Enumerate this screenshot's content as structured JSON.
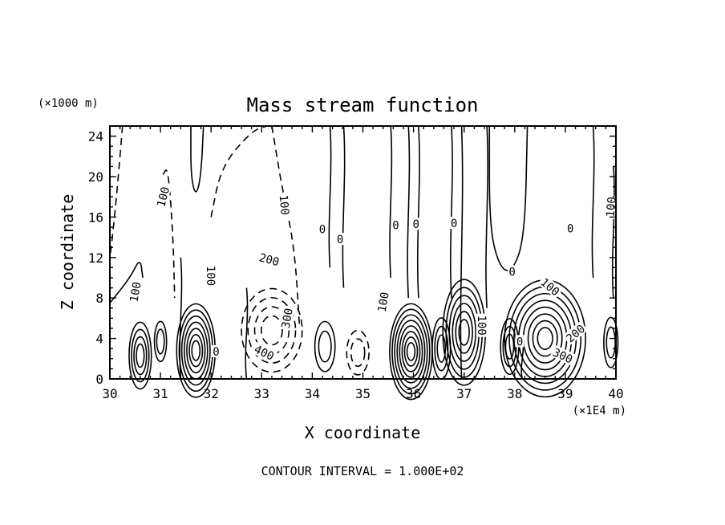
{
  "chart_data": {
    "type": "contour",
    "title": "Mass stream function",
    "xlabel": "X coordinate",
    "ylabel": "Z coordinate",
    "x_unit": "(×1E4 m)",
    "y_unit": "(×1000 m)",
    "xlim": [
      30,
      40
    ],
    "ylim": [
      0,
      25
    ],
    "xticks": [
      30,
      31,
      32,
      33,
      34,
      35,
      36,
      37,
      38,
      39,
      40
    ],
    "yticks": [
      0,
      4,
      8,
      12,
      16,
      20,
      24
    ],
    "footnote": "CONTOUR INTERVAL = 1.000E+02",
    "negative_contours_dashed": true,
    "contour_labels": [
      {
        "text": "100",
        "x": 31.05,
        "y": 18.0,
        "rot": -75
      },
      {
        "text": "100",
        "x": 30.5,
        "y": 8.6,
        "rot": -80
      },
      {
        "text": "100",
        "x": 32.0,
        "y": 10.2,
        "rot": 90
      },
      {
        "text": "100",
        "x": 33.45,
        "y": 17.2,
        "rot": 85
      },
      {
        "text": "200",
        "x": 33.15,
        "y": 11.8,
        "rot": 15
      },
      {
        "text": "300",
        "x": 33.5,
        "y": 6.0,
        "rot": -80
      },
      {
        "text": "400",
        "x": 33.05,
        "y": 2.6,
        "rot": 25
      },
      {
        "text": "100",
        "x": 35.4,
        "y": 7.6,
        "rot": -80
      },
      {
        "text": "100",
        "x": 37.35,
        "y": 5.3,
        "rot": 90
      },
      {
        "text": "100",
        "x": 38.7,
        "y": 9.1,
        "rot": 40
      },
      {
        "text": "200",
        "x": 39.2,
        "y": 4.5,
        "rot": -40
      },
      {
        "text": "300",
        "x": 38.95,
        "y": 2.3,
        "rot": 25
      },
      {
        "text": "100",
        "x": 39.9,
        "y": 17.0,
        "rot": -85
      },
      {
        "text": "0",
        "x": 34.2,
        "y": 14.8,
        "rot": 0
      },
      {
        "text": "0",
        "x": 34.55,
        "y": 13.8,
        "rot": 0
      },
      {
        "text": "0",
        "x": 35.65,
        "y": 15.2,
        "rot": 0
      },
      {
        "text": "0",
        "x": 36.05,
        "y": 15.3,
        "rot": 0
      },
      {
        "text": "0",
        "x": 36.8,
        "y": 15.4,
        "rot": 0
      },
      {
        "text": "0",
        "x": 37.95,
        "y": 10.6,
        "rot": 0
      },
      {
        "text": "0",
        "x": 39.1,
        "y": 14.9,
        "rot": 0
      },
      {
        "text": "0",
        "x": 38.1,
        "y": 3.7,
        "rot": 0
      },
      {
        "text": "0",
        "x": 32.1,
        "y": 2.7,
        "rot": 0
      }
    ],
    "vertical_lines": [
      {
        "x": 31.4,
        "y0": 12,
        "y1": 0
      },
      {
        "x": 32.7,
        "y0": 9,
        "y1": 0
      },
      {
        "x": 34.35,
        "y0": 25,
        "y1": 11
      },
      {
        "x": 34.62,
        "y0": 25,
        "y1": 9
      },
      {
        "x": 35.55,
        "y0": 25,
        "y1": 10
      },
      {
        "x": 35.9,
        "y0": 25,
        "y1": 8
      },
      {
        "x": 36.1,
        "y0": 25,
        "y1": 8
      },
      {
        "x": 36.75,
        "y0": 25,
        "y1": 8
      },
      {
        "x": 36.95,
        "y0": 25,
        "y1": 0
      },
      {
        "x": 37.45,
        "y0": 25,
        "y1": 7
      },
      {
        "x": 38.15,
        "y0": 4,
        "y1": 0
      },
      {
        "x": 39.55,
        "y0": 25,
        "y1": 10
      },
      {
        "x": 39.95,
        "y0": 21,
        "y1": 8
      }
    ],
    "cells": [
      {
        "cx": 30.6,
        "cy": 2.3,
        "rx": 0.22,
        "ry": 6.0,
        "levels": 4,
        "dash": false
      },
      {
        "cx": 31.0,
        "cy": 3.7,
        "rx": 0.12,
        "ry": 3.6,
        "levels": 2,
        "dash": false
      },
      {
        "cx": 31.7,
        "cy": 2.8,
        "rx": 0.38,
        "ry": 8.4,
        "levels": 7,
        "dash": false
      },
      {
        "cx": 33.2,
        "cy": 4.8,
        "rx": 0.6,
        "ry": 7.5,
        "levels": 4,
        "dash": true
      },
      {
        "cx": 34.25,
        "cy": 3.2,
        "rx": 0.2,
        "ry": 4.5,
        "levels": 2,
        "dash": false
      },
      {
        "cx": 34.9,
        "cy": 2.6,
        "rx": 0.22,
        "ry": 4.0,
        "levels": 2,
        "dash": true
      },
      {
        "cx": 35.95,
        "cy": 2.7,
        "rx": 0.42,
        "ry": 8.6,
        "levels": 8,
        "dash": false
      },
      {
        "cx": 36.55,
        "cy": 3.0,
        "rx": 0.18,
        "ry": 5.5,
        "levels": 3,
        "dash": false
      },
      {
        "cx": 37.0,
        "cy": 4.6,
        "rx": 0.42,
        "ry": 9.5,
        "levels": 6,
        "dash": false
      },
      {
        "cx": 37.9,
        "cy": 3.2,
        "rx": 0.18,
        "ry": 5.0,
        "levels": 3,
        "dash": false
      },
      {
        "cx": 38.6,
        "cy": 4.0,
        "rx": 0.8,
        "ry": 10.5,
        "levels": 8,
        "dash": false
      },
      {
        "cx": 39.9,
        "cy": 3.6,
        "rx": 0.14,
        "ry": 4.5,
        "levels": 2,
        "dash": false
      }
    ],
    "extra_curves": [
      {
        "dash": false,
        "pts": [
          [
            31.6,
            25
          ],
          [
            31.6,
            20
          ],
          [
            31.7,
            18
          ],
          [
            31.8,
            20
          ],
          [
            31.85,
            25
          ]
        ]
      },
      {
        "dash": false,
        "pts": [
          [
            37.5,
            25
          ],
          [
            37.5,
            15
          ],
          [
            37.7,
            11
          ],
          [
            37.95,
            10.5
          ],
          [
            38.2,
            14
          ],
          [
            38.25,
            25
          ]
        ]
      },
      {
        "dash": true,
        "pts": [
          [
            30.25,
            25
          ],
          [
            30.15,
            19
          ],
          [
            30.05,
            14
          ],
          [
            30.0,
            12
          ]
        ]
      },
      {
        "dash": true,
        "pts": [
          [
            31.05,
            20.2
          ],
          [
            31.15,
            21
          ],
          [
            31.25,
            14
          ],
          [
            31.28,
            8
          ]
        ]
      },
      {
        "dash": true,
        "pts": [
          [
            32.0,
            16
          ],
          [
            32.2,
            21
          ],
          [
            32.8,
            24.5
          ],
          [
            33.1,
            25
          ]
        ]
      },
      {
        "dash": true,
        "pts": [
          [
            33.2,
            25
          ],
          [
            33.3,
            22
          ],
          [
            33.4,
            19
          ],
          [
            33.65,
            13
          ],
          [
            33.75,
            5
          ]
        ]
      },
      {
        "dash": false,
        "pts": [
          [
            30.0,
            7.5
          ],
          [
            30.4,
            10
          ],
          [
            30.6,
            12
          ],
          [
            30.65,
            10
          ]
        ]
      }
    ]
  }
}
